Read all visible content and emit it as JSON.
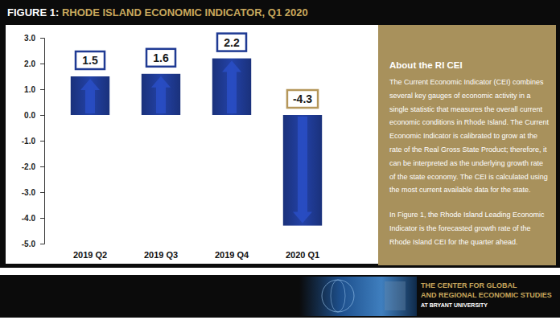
{
  "chart_data": {
    "type": "bar",
    "title": "FIGURE 1: RHODE ISLAND ECONOMIC INDICATOR, Q1 2020",
    "categories": [
      "2019 Q2",
      "2019 Q3",
      "2019 Q4",
      "2020 Q1"
    ],
    "values": [
      1.5,
      1.6,
      2.2,
      -4.3
    ],
    "color": "#1f3a93",
    "ylim": [
      -5,
      3
    ],
    "yticks": [
      {
        "value": -5,
        "label": "-5.0"
      },
      {
        "value": -4,
        "label": "-4.0"
      },
      {
        "value": -3,
        "label": "-3.0"
      },
      {
        "value": -2,
        "label": "-2.0"
      },
      {
        "value": -1,
        "label": "-1.0"
      },
      {
        "value": 0,
        "label": "0.0"
      },
      {
        "value": 1,
        "label": "1.0"
      },
      {
        "value": 2,
        "label": "2.0"
      },
      {
        "value": 3,
        "label": "3.0"
      }
    ],
    "grid": false,
    "data_labels": true
  },
  "sidebar": {
    "heading": "About the RI CEI",
    "paragraphs": [
      [
        "The Current Economic Indicator (CEI) combines",
        "several key gauges of economic activity in a",
        "single statistic that measures the overall current",
        "economic conditions in Rhode Island. The Current",
        "Economic Indicator is calibrated to grow at the",
        "rate of the Real Gross State Product; therefore, it",
        "can be interpreted as the underlying growth rate",
        "of the state economy. The CEI is calculated using",
        "the most current available data for the state."
      ],
      [
        "In Figure 1, the Rhode Island Leading Economic",
        "Indicator is the forecasted growth rate of the",
        "Rhode Island CEI for the quarter ahead."
      ]
    ]
  },
  "footer": {
    "lines": [
      "THE CENTER FOR GLOBAL",
      "AND REGIONAL ECONOMIC STUDIES"
    ],
    "subline": "AT BRYANT UNIVERSITY"
  }
}
